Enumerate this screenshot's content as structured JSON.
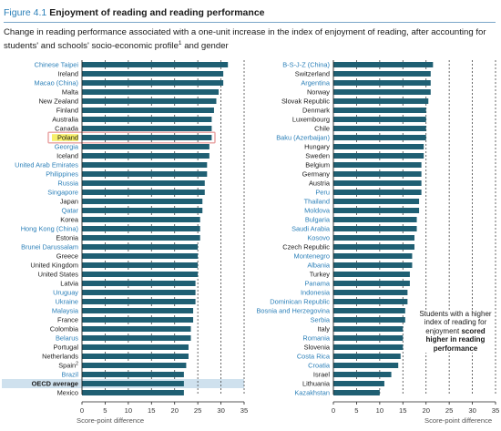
{
  "figure": {
    "number": "Figure 4.1",
    "title": "Enjoyment of reading and reading performance",
    "subtitle_main": "Change in reading performance associated with a one-unit increase in the index of enjoyment of reading, after accounting for students' and schools' socio-economic profile",
    "subtitle_sup": "1",
    "subtitle_tail": " and gender",
    "note_lead": "Students with a higher index of reading for enjoyment",
    "note_strong": "scored higher in reading performance"
  },
  "colors": {
    "bar": "#1f5f73",
    "oecd_label": "#2a7fb8",
    "highlight_band": "#cfe1ee",
    "highlight_box": "#e8a0a0",
    "highlight_fill": "#f7ef6a"
  },
  "chart_data": [
    {
      "type": "bar",
      "orientation": "horizontal",
      "xlabel": "Score-point difference",
      "xlim": [
        0,
        35
      ],
      "xticks": [
        0,
        5,
        10,
        15,
        20,
        25,
        30,
        35
      ],
      "grid": "dashed vertical at 5-point intervals",
      "categories": [
        "Chinese Taipei",
        "Ireland",
        "Macao (China)",
        "Malta",
        "New Zealand",
        "Finland",
        "Australia",
        "Canada",
        "Poland",
        "Georgia",
        "Iceland",
        "United Arab Emirates",
        "Philippines",
        "Russia",
        "Singapore",
        "Japan",
        "Qatar",
        "Korea",
        "Hong Kong (China)",
        "Estonia",
        "Brunei Darussalam",
        "Greece",
        "United Kingdom",
        "United States",
        "Latvia",
        "Uruguay",
        "Ukraine",
        "Malaysia",
        "France",
        "Colombia",
        "Belarus",
        "Portugal",
        "Netherlands",
        "Spain",
        "Brazil",
        "OECD average",
        "Mexico"
      ],
      "label_superscripts": {
        "Spain": "2"
      },
      "partner_flags": [
        true,
        false,
        true,
        false,
        false,
        false,
        false,
        false,
        false,
        true,
        false,
        true,
        true,
        true,
        true,
        false,
        true,
        false,
        true,
        false,
        true,
        false,
        false,
        false,
        false,
        true,
        true,
        true,
        false,
        false,
        true,
        false,
        false,
        false,
        true,
        false,
        false
      ],
      "highlighted": [
        "Poland"
      ],
      "reference": "OECD average",
      "values": [
        31.5,
        30.5,
        30.5,
        29.5,
        29,
        28.5,
        28,
        28,
        28,
        27.5,
        27.5,
        27,
        27,
        26.5,
        26.5,
        26,
        26,
        25.5,
        25.5,
        25.5,
        25,
        25,
        25,
        25,
        24.5,
        24.5,
        24.5,
        24,
        24,
        23.5,
        23.5,
        23,
        23,
        22.5,
        22,
        22,
        22
      ]
    },
    {
      "type": "bar",
      "orientation": "horizontal",
      "xlabel": "Score-point difference",
      "xlim": [
        0,
        35
      ],
      "xticks": [
        0,
        5,
        10,
        15,
        20,
        25,
        30,
        35
      ],
      "grid": "dashed vertical at 5-point intervals",
      "categories": [
        "B-S-J-Z (China)",
        "Switzerland",
        "Argentina",
        "Norway",
        "Slovak Republic",
        "Denmark",
        "Luxembourg",
        "Chile",
        "Baku (Azerbaijan)",
        "Hungary",
        "Sweden",
        "Belgium",
        "Germany",
        "Austria",
        "Peru",
        "Thailand",
        "Moldova",
        "Bulgaria",
        "Saudi Arabia",
        "Kosovo",
        "Czech Republic",
        "Montenegro",
        "Albania",
        "Turkey",
        "Panama",
        "Indonesia",
        "Dominican Republic",
        "Bosnia and Herzegovina",
        "Serbia",
        "Italy",
        "Romania",
        "Slovenia",
        "Costa Rica",
        "Croatia",
        "Israel",
        "Lithuania",
        "Kazakhstan"
      ],
      "partner_flags": [
        true,
        false,
        true,
        false,
        false,
        false,
        false,
        false,
        true,
        false,
        false,
        false,
        false,
        false,
        true,
        true,
        true,
        true,
        true,
        true,
        false,
        true,
        true,
        false,
        true,
        true,
        true,
        true,
        true,
        false,
        true,
        false,
        true,
        true,
        false,
        false,
        true
      ],
      "values": [
        21.5,
        21,
        21,
        21,
        20.5,
        20,
        20,
        20,
        20,
        19.5,
        19.5,
        19,
        19,
        19,
        19,
        18.5,
        18.5,
        18,
        18,
        17.5,
        17.5,
        17,
        17,
        16.5,
        16.5,
        16,
        16,
        15.5,
        15.5,
        15,
        15,
        15,
        14.5,
        14,
        12.5,
        11,
        10
      ]
    }
  ]
}
